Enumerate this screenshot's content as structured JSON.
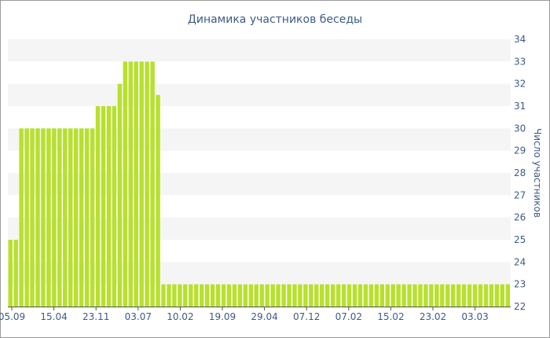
{
  "chart_data": {
    "type": "bar",
    "title": "Динамика участников беседы",
    "ylabel": "Число участников",
    "xlabel": "",
    "ylim": [
      22,
      34
    ],
    "yticks": [
      22,
      23,
      24,
      25,
      26,
      27,
      28,
      29,
      30,
      31,
      32,
      33,
      34
    ],
    "y_axis_side": "right",
    "grid": "alternating horizontal bands",
    "x_tick_labels": [
      "05.09",
      "15.04",
      "23.11",
      "03.07",
      "10.02",
      "19.09",
      "29.04",
      "07.12",
      "07.02",
      "15.02",
      "23.02",
      "03.03"
    ],
    "values": [
      25,
      25,
      30,
      30,
      30,
      30,
      30,
      30,
      30,
      30,
      30,
      30,
      30,
      30,
      30,
      30,
      31,
      31,
      31,
      31,
      32,
      33,
      33,
      33,
      33,
      33,
      33,
      31.5,
      23,
      23,
      23,
      23,
      23,
      23,
      23,
      23,
      23,
      23,
      23,
      23,
      23,
      23,
      23,
      23,
      23,
      23,
      23,
      23,
      23,
      23,
      23,
      23,
      23,
      23,
      23,
      23,
      23,
      23,
      23,
      23,
      23,
      23,
      23,
      23,
      23,
      23,
      23,
      23,
      23,
      23,
      23,
      23,
      23,
      23,
      23,
      23,
      23,
      23,
      23,
      23,
      23,
      23,
      23,
      23,
      23,
      23,
      23,
      23,
      23,
      23,
      23,
      23
    ],
    "colors": {
      "bar": "#b8e02e",
      "band": "#f5f5f5",
      "text": "#3d5a8a",
      "axis": "#555555"
    }
  }
}
